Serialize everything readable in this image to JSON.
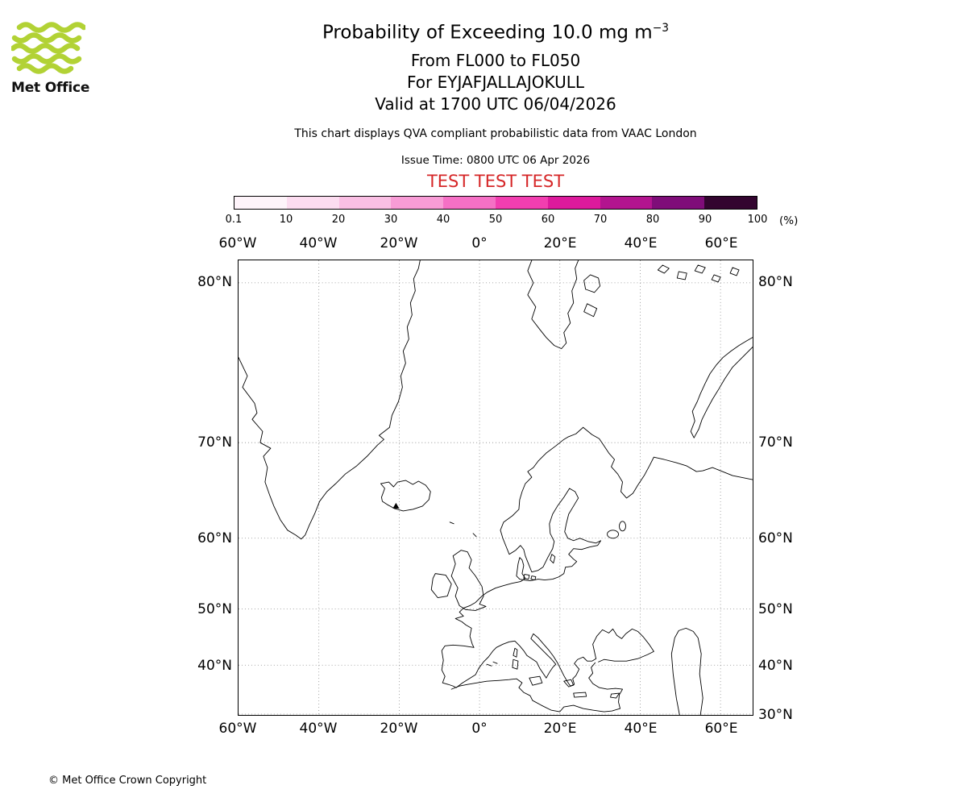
{
  "logo": {
    "name": "Met Office",
    "green": "#B2D235"
  },
  "header": {
    "title_prefix": "Probability of Exceeding 10.0 mg m",
    "title_exponent": "−3",
    "line_fl": "From FL000 to FL050",
    "line_volcano": "For EYJAFJALLAJOKULL",
    "line_valid": "Valid at 1700 UTC 06/04/2026",
    "qva_note": "This chart displays QVA compliant probabilistic data from VAAC London",
    "issue_time": "Issue Time: 0800 UTC 06 Apr 2026",
    "test_banner": "TEST TEST TEST",
    "test_color": "#d62728"
  },
  "colorbar": {
    "tick_labels": [
      "0.1",
      "10",
      "20",
      "30",
      "40",
      "50",
      "60",
      "70",
      "80",
      "90",
      "100"
    ],
    "unit_label": "(%)",
    "segment_colors": [
      "#fef4fa",
      "#fcdcf0",
      "#fabfe4",
      "#f89cd6",
      "#f570c5",
      "#f23eb0",
      "#dd1a9c",
      "#b3148f",
      "#7f0d79",
      "#33052f"
    ]
  },
  "map": {
    "lon_labels": [
      "60°W",
      "40°W",
      "20°W",
      "0°",
      "20°E",
      "40°E",
      "60°E"
    ],
    "lat_labels_left": [
      "80°N",
      "70°N",
      "60°N",
      "50°N",
      "40°N"
    ],
    "lat_labels_right": [
      "80°N",
      "70°N",
      "60°N",
      "50°N",
      "40°N",
      "30°N"
    ]
  },
  "footer": {
    "copyright": "© Met Office Crown Copyright"
  },
  "chart_data": {
    "type": "map",
    "title": "Probability of Exceeding 10.0 mg m^-3",
    "flight_levels": "FL000 to FL050",
    "volcano": "EYJAFJALLAJOKULL",
    "valid_time": "1700 UTC 06/04/2026",
    "issue_time": "0800 UTC 06 Apr 2026",
    "source": "VAAC London",
    "status": "TEST TEST TEST",
    "colorbar_percent_thresholds": [
      0.1,
      10,
      20,
      30,
      40,
      50,
      60,
      70,
      80,
      90,
      100
    ],
    "colorbar_unit": "%",
    "projection": "Mercator",
    "map_extent": {
      "lon_min": -60,
      "lon_max": 68,
      "lat_min": 30,
      "lat_max": 81
    },
    "grid": {
      "lon_step_deg": 20,
      "lat_step_deg": 10,
      "style": "dotted"
    },
    "plotted_probability_regions": []
  }
}
